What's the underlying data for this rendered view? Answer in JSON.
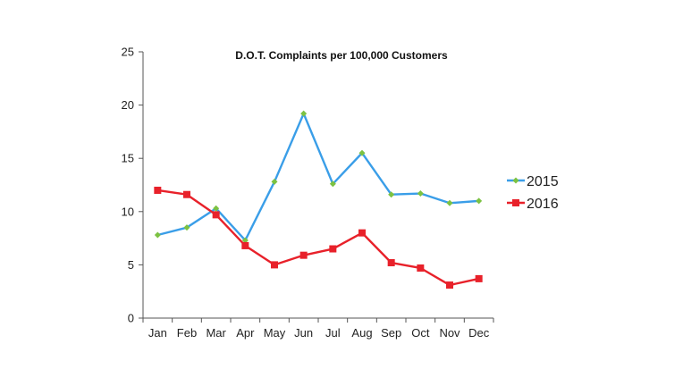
{
  "chart_data": {
    "type": "line",
    "title": "D.O.T. Complaints per 100,000 Customers",
    "xlabel": "",
    "ylabel": "",
    "categories": [
      "Jan",
      "Feb",
      "Mar",
      "Apr",
      "May",
      "Jun",
      "Jul",
      "Aug",
      "Sep",
      "Oct",
      "Nov",
      "Dec"
    ],
    "ylim": [
      0,
      25
    ],
    "yticks": [
      "0",
      "5",
      "10",
      "15",
      "20",
      "25"
    ],
    "grid": false,
    "legend_position": "right",
    "series": [
      {
        "name": "2015",
        "color": "#3a9ee8",
        "marker_color": "#7cc242",
        "marker": "diamond",
        "values": [
          7.8,
          8.5,
          10.3,
          7.3,
          12.8,
          19.2,
          12.6,
          15.5,
          11.6,
          11.7,
          10.8,
          11.0
        ]
      },
      {
        "name": "2016",
        "color": "#e8212a",
        "marker_color": "#e8212a",
        "marker": "square",
        "values": [
          12.0,
          11.6,
          9.7,
          6.8,
          5.0,
          5.9,
          6.5,
          8.0,
          5.2,
          4.7,
          3.1,
          3.7
        ]
      }
    ]
  }
}
